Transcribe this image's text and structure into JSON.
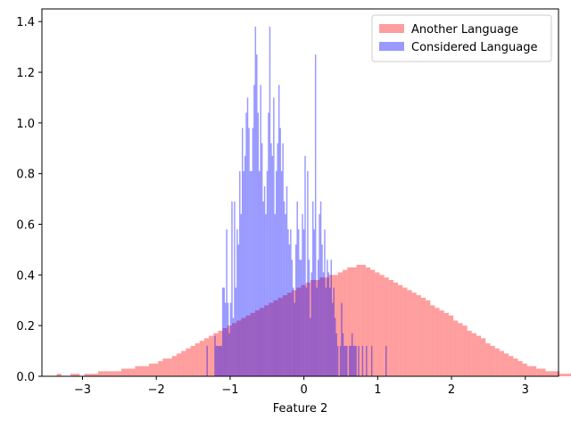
{
  "chart_data": {
    "type": "bar",
    "title": "",
    "xlabel": "Feature 2",
    "ylabel": "",
    "xlim": [
      -3.55,
      3.45
    ],
    "ylim": [
      0,
      1.45
    ],
    "xticks": [
      -3,
      -2,
      -1,
      0,
      1,
      2,
      3
    ],
    "xtick_labels": [
      "−3",
      "−2",
      "−1",
      "0",
      "1",
      "2",
      "3"
    ],
    "yticks": [
      0.0,
      0.2,
      0.4,
      0.6,
      0.8,
      1.0,
      1.2,
      1.4
    ],
    "ytick_labels": [
      "0.0",
      "0.2",
      "0.4",
      "0.6",
      "0.8",
      "1.0",
      "1.2",
      "1.4"
    ],
    "grid": false,
    "legend_position": "top-right",
    "series": [
      {
        "name": "Another Language",
        "color": "#ff0000",
        "alpha": 0.38,
        "bin_start": -3.35,
        "bin_width": 0.0625,
        "values": [
          0.01,
          0.0,
          0.0,
          0.01,
          0.01,
          0.0,
          0.01,
          0.01,
          0.01,
          0.02,
          0.02,
          0.02,
          0.02,
          0.02,
          0.03,
          0.03,
          0.03,
          0.04,
          0.04,
          0.04,
          0.05,
          0.05,
          0.06,
          0.07,
          0.07,
          0.08,
          0.09,
          0.1,
          0.11,
          0.12,
          0.13,
          0.14,
          0.15,
          0.16,
          0.17,
          0.18,
          0.19,
          0.2,
          0.21,
          0.22,
          0.23,
          0.24,
          0.25,
          0.26,
          0.27,
          0.28,
          0.29,
          0.3,
          0.31,
          0.32,
          0.33,
          0.34,
          0.35,
          0.36,
          0.37,
          0.38,
          0.38,
          0.39,
          0.39,
          0.4,
          0.4,
          0.41,
          0.42,
          0.43,
          0.43,
          0.44,
          0.44,
          0.43,
          0.42,
          0.41,
          0.4,
          0.39,
          0.38,
          0.37,
          0.36,
          0.35,
          0.34,
          0.33,
          0.32,
          0.31,
          0.3,
          0.28,
          0.27,
          0.26,
          0.25,
          0.24,
          0.22,
          0.21,
          0.2,
          0.18,
          0.17,
          0.16,
          0.15,
          0.13,
          0.12,
          0.11,
          0.1,
          0.09,
          0.08,
          0.07,
          0.06,
          0.05,
          0.04,
          0.04,
          0.03,
          0.03,
          0.02,
          0.02,
          0.02,
          0.01,
          0.01,
          0.01,
          0.01
        ]
      },
      {
        "name": "Considered Language",
        "color": "#0000ff",
        "alpha": 0.4,
        "bin_start": -1.32,
        "bin_width": 0.0177,
        "values": [
          0.12,
          0.0,
          0.0,
          0.0,
          0.0,
          0.0,
          0.16,
          0.12,
          0.12,
          0.12,
          0.12,
          0.12,
          0.35,
          0.35,
          0.29,
          0.58,
          0.29,
          0.17,
          0.29,
          0.69,
          0.23,
          0.69,
          0.35,
          0.58,
          0.52,
          0.81,
          0.64,
          0.98,
          0.81,
          0.87,
          1.04,
          1.1,
          0.98,
          0.81,
          0.81,
          0.98,
          1.15,
          1.38,
          1.27,
          1.04,
          0.81,
          1.15,
          0.92,
          0.69,
          0.75,
          0.64,
          0.81,
          1.04,
          1.38,
          0.92,
          0.87,
          1.1,
          0.64,
          0.81,
          0.92,
          1.15,
          0.98,
          0.81,
          0.92,
          0.69,
          0.64,
          0.75,
          0.58,
          0.52,
          0.58,
          0.46,
          0.35,
          0.29,
          0.52,
          0.69,
          0.58,
          0.46,
          0.46,
          0.64,
          0.58,
          0.87,
          0.35,
          0.81,
          0.46,
          0.23,
          0.41,
          0.69,
          0.58,
          1.27,
          0.35,
          0.46,
          0.64,
          0.69,
          0.52,
          0.41,
          0.58,
          0.35,
          0.46,
          0.41,
          0.35,
          0.46,
          0.29,
          0.35,
          0.23,
          0.17,
          0.12,
          0.0,
          0.12,
          0.29,
          0.17,
          0.12,
          0.12,
          0.12,
          0.0,
          0.12,
          0.12,
          0.17,
          0.12,
          0.12,
          0.12,
          0.0,
          0.12,
          0.0,
          0.0,
          0.12,
          0.0,
          0.0,
          0.12,
          0.0,
          0.0,
          0.0,
          0.12,
          0.0,
          0.0,
          0.0,
          0.0,
          0.0,
          0.0,
          0.0,
          0.0,
          0.0,
          0.0,
          0.12
        ]
      }
    ]
  }
}
